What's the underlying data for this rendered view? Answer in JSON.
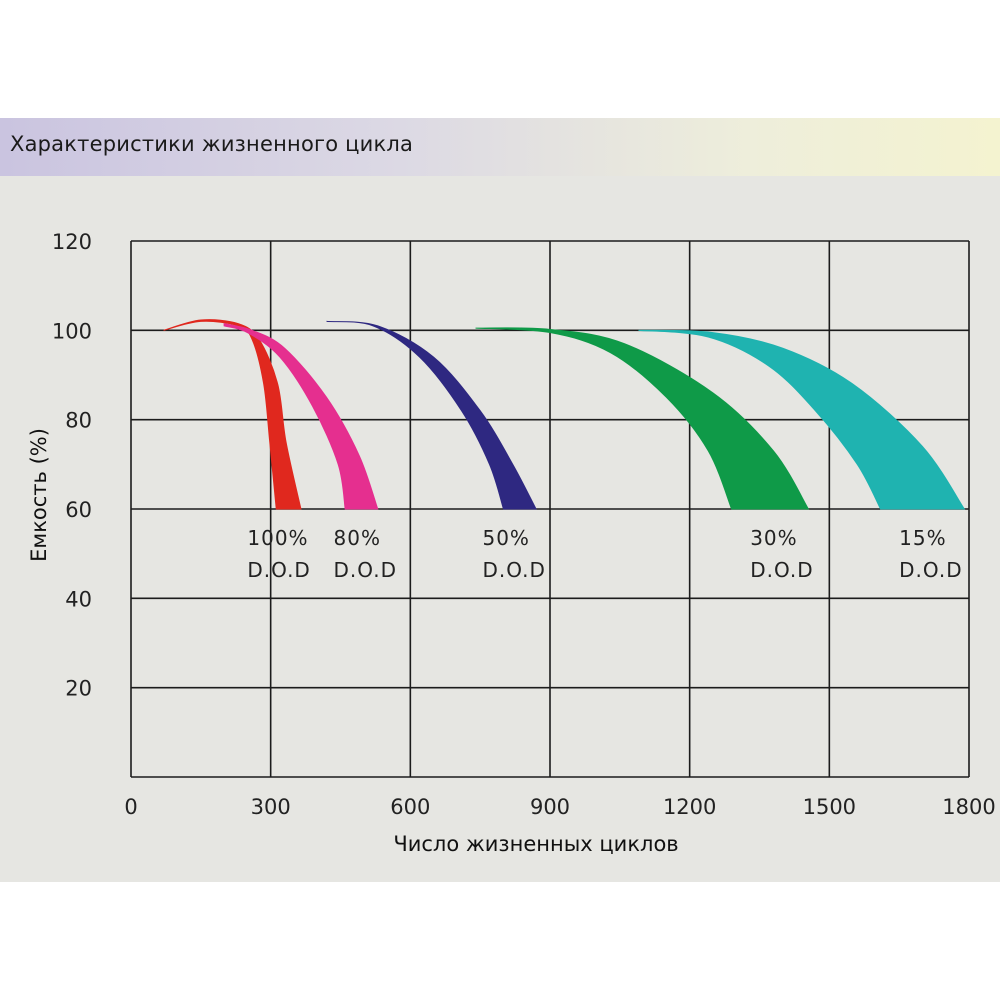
{
  "title": "Характеристики жизненного цикла",
  "chart_data": {
    "type": "area",
    "title": "Характеристики жизненного цикла",
    "xlabel": "Число жизненных циклов",
    "ylabel": "Емкость (%)",
    "xlim": [
      0,
      1800
    ],
    "ylim": [
      0,
      120
    ],
    "x_ticks": [
      "0",
      "300",
      "600",
      "900",
      "1200",
      "1500",
      "1800"
    ],
    "y_ticks": [
      "20",
      "40",
      "60",
      "80",
      "100",
      "120"
    ],
    "grid": true,
    "series": [
      {
        "label_line1": "100%",
        "label_line2": "D.O.D",
        "color": "#e0281e",
        "inner": [
          [
            70,
            100
          ],
          [
            150,
            102
          ],
          [
            230,
            101
          ],
          [
            260,
            98
          ],
          [
            285,
            88
          ],
          [
            298,
            75
          ],
          [
            312,
            60
          ]
        ],
        "outer": [
          [
            70,
            100
          ],
          [
            150,
            102.3
          ],
          [
            230,
            101.5
          ],
          [
            275,
            98
          ],
          [
            315,
            88
          ],
          [
            333,
            75
          ],
          [
            365,
            60
          ]
        ],
        "label_x": 250
      },
      {
        "label_line1": "80%",
        "label_line2": "D.O.D",
        "color": "#e52f8f",
        "inner": [
          [
            200,
            101
          ],
          [
            250,
            99.5
          ],
          [
            320,
            94
          ],
          [
            390,
            83
          ],
          [
            445,
            70
          ],
          [
            460,
            60
          ]
        ],
        "outer": [
          [
            200,
            101.5
          ],
          [
            260,
            100
          ],
          [
            330,
            96
          ],
          [
            420,
            85
          ],
          [
            490,
            72
          ],
          [
            530,
            60
          ]
        ],
        "label_x": 435
      },
      {
        "label_line1": "50%",
        "label_line2": "D.O.D",
        "color": "#2e2881",
        "inner": [
          [
            420,
            102
          ],
          [
            520,
            101
          ],
          [
            620,
            94
          ],
          [
            710,
            82
          ],
          [
            770,
            70
          ],
          [
            800,
            60
          ]
        ],
        "outer": [
          [
            420,
            102
          ],
          [
            530,
            101
          ],
          [
            650,
            94
          ],
          [
            750,
            82
          ],
          [
            820,
            70
          ],
          [
            870,
            60
          ]
        ],
        "label_x": 755
      },
      {
        "label_line1": "30%",
        "label_line2": "D.O.D",
        "color": "#0f9a48",
        "inner": [
          [
            740,
            100.5
          ],
          [
            900,
            99.5
          ],
          [
            1030,
            95
          ],
          [
            1150,
            85
          ],
          [
            1240,
            73
          ],
          [
            1290,
            60
          ]
        ],
        "outer": [
          [
            740,
            100.5
          ],
          [
            900,
            100.2
          ],
          [
            1060,
            97
          ],
          [
            1250,
            86
          ],
          [
            1380,
            73
          ],
          [
            1455,
            60
          ]
        ],
        "label_x": 1330
      },
      {
        "label_line1": "15%",
        "label_line2": "D.O.D",
        "color": "#1fb3b0",
        "inner": [
          [
            1090,
            100
          ],
          [
            1240,
            98.5
          ],
          [
            1370,
            92
          ],
          [
            1470,
            82
          ],
          [
            1560,
            70
          ],
          [
            1610,
            60
          ]
        ],
        "outer": [
          [
            1090,
            100
          ],
          [
            1250,
            99.5
          ],
          [
            1400,
            96
          ],
          [
            1550,
            88
          ],
          [
            1700,
            74
          ],
          [
            1790,
            60
          ]
        ],
        "label_x": 1650
      }
    ]
  }
}
